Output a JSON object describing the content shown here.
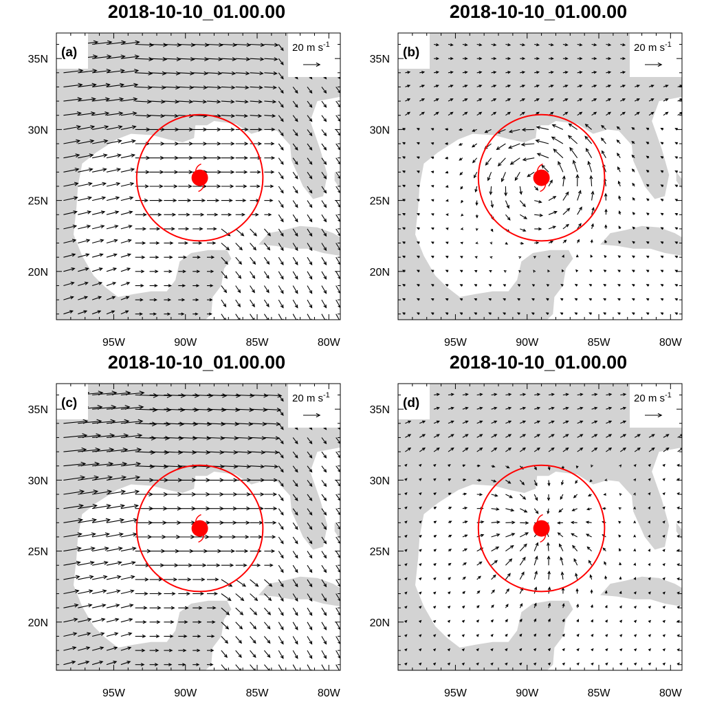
{
  "panels": [
    {
      "id": "a",
      "title": "2018-10-10_01.00.00",
      "label": "(a)",
      "flow": "advective"
    },
    {
      "id": "b",
      "title": "2018-10-10_01.00.00",
      "label": "(b)",
      "flow": "cyclonic"
    },
    {
      "id": "c",
      "title": "2018-10-10_01.00.00",
      "label": "(c)",
      "flow": "advective_strong"
    },
    {
      "id": "d",
      "title": "2018-10-10_01.00.00",
      "label": "(d)",
      "flow": "convergent"
    }
  ],
  "reference_vector": {
    "value": "20",
    "unit": "m s",
    "exponent": "-1"
  },
  "lon_ticks": [
    {
      "lon": -95,
      "label": "95W"
    },
    {
      "lon": -90,
      "label": "90W"
    },
    {
      "lon": -85,
      "label": "85W"
    },
    {
      "lon": -80,
      "label": "80W"
    }
  ],
  "lat_ticks": [
    {
      "lat": 20,
      "label": "20N"
    },
    {
      "lat": 25,
      "label": "25N"
    },
    {
      "lat": 30,
      "label": "30N"
    },
    {
      "lat": 35,
      "label": "35N"
    }
  ],
  "map_extent": {
    "lon_min": -99,
    "lon_max": -79.2,
    "lat_min": 16.6,
    "lat_max": 36.8
  },
  "storm": {
    "name_shown": false,
    "center_lon": -89,
    "center_lat": 26.6,
    "radius_deg": 4.4
  },
  "colors": {
    "land": "#d3d3d3",
    "ocean": "#ffffff",
    "storm": "#ff0000",
    "vector": "#000000"
  }
}
